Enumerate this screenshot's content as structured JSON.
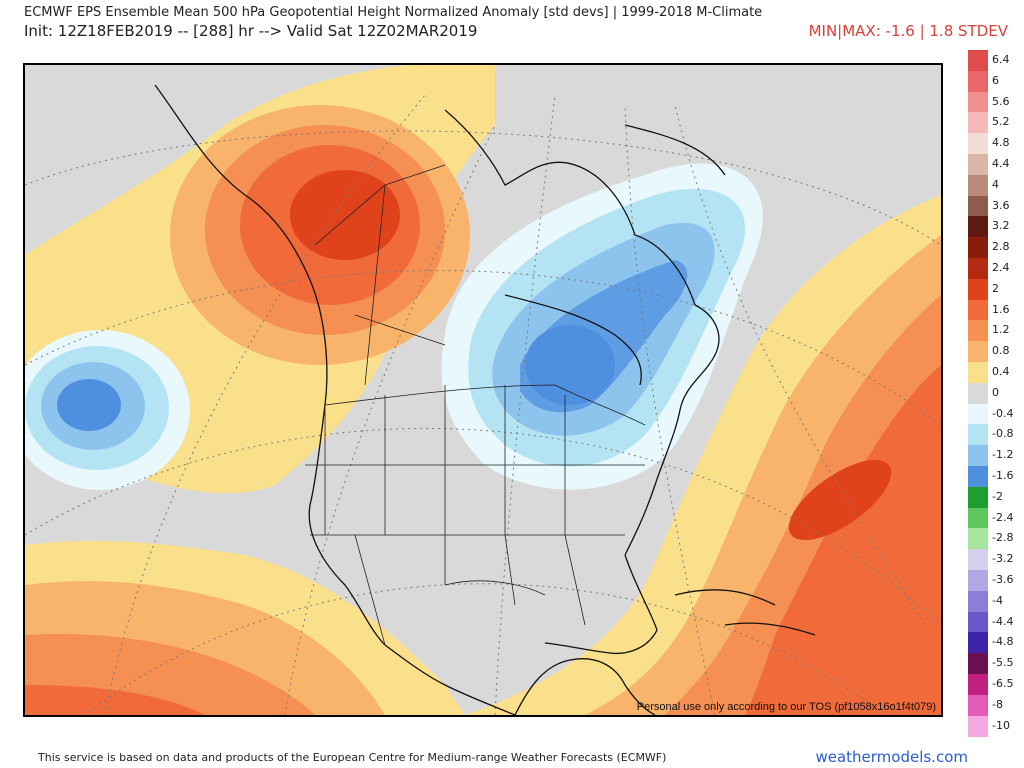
{
  "header": {
    "title_line1": "ECMWF EPS Ensemble Mean 500 hPa Geopotential Height Normalized Anomaly [std devs] | 1999-2018 M-Climate",
    "title_line2": "Init: 12Z18FEB2019 -- [288] hr --> Valid Sat 12Z02MAR2019",
    "minmax": "MIN|MAX: -1.6 | 1.8 STDEV"
  },
  "map": {
    "tos_note": "Personal use only according to our TOS (pf1058x16o1f4t079)"
  },
  "footer": {
    "attribution": "This service is based on data and products of the European Centre for Medium-range Weather Forecasts (ECMWF)",
    "brand": "weathermodels.com"
  },
  "legend": [
    {
      "label": "6.4",
      "color": "#e04b4b"
    },
    {
      "label": "6",
      "color": "#e86868"
    },
    {
      "label": "5.6",
      "color": "#f08f8f"
    },
    {
      "label": "5.2",
      "color": "#f6b9b9"
    },
    {
      "label": "4.8",
      "color": "#f2dcd6"
    },
    {
      "label": "4.4",
      "color": "#d9b6a8"
    },
    {
      "label": "4",
      "color": "#b98b78"
    },
    {
      "label": "3.6",
      "color": "#8d5c4a"
    },
    {
      "label": "3.2",
      "color": "#5c1a10"
    },
    {
      "label": "2.8",
      "color": "#8a1c0c"
    },
    {
      "label": "2.4",
      "color": "#b32a10"
    },
    {
      "label": "2",
      "color": "#e0421c"
    },
    {
      "label": "1.6",
      "color": "#f06a3a"
    },
    {
      "label": "1.2",
      "color": "#f58f52"
    },
    {
      "label": "0.8",
      "color": "#f8b46a"
    },
    {
      "label": "0.4",
      "color": "#fbe08c"
    },
    {
      "label": "0",
      "color": "#d9d9d9"
    },
    {
      "label": "-0.4",
      "color": "#e8f8fc"
    },
    {
      "label": "-0.8",
      "color": "#b4e4f4"
    },
    {
      "label": "-1.2",
      "color": "#8cc4ee"
    },
    {
      "label": "-1.6",
      "color": "#4f8fe0"
    },
    {
      "label": "-2",
      "color": "#1e9e2e"
    },
    {
      "label": "-2.4",
      "color": "#5cc75a"
    },
    {
      "label": "-2.8",
      "color": "#a6e69c"
    },
    {
      "label": "-3.2",
      "color": "#d4d0ee"
    },
    {
      "label": "-3.6",
      "color": "#b0a8e4"
    },
    {
      "label": "-4",
      "color": "#8a7ed8"
    },
    {
      "label": "-4.4",
      "color": "#6a58c8"
    },
    {
      "label": "-4.8",
      "color": "#3c22a8"
    },
    {
      "label": "-5.5",
      "color": "#6a1050"
    },
    {
      "label": "-6.5",
      "color": "#c02080"
    },
    {
      "label": "-8",
      "color": "#e45ab8"
    },
    {
      "label": "-10",
      "color": "#f4a8e0"
    }
  ]
}
